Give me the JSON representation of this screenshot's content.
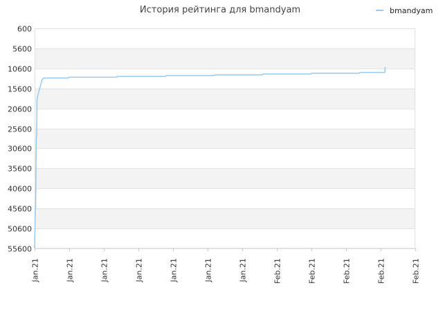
{
  "chart_data": {
    "type": "line",
    "title": "История рейтинга для bmandyam",
    "xlabel": "",
    "ylabel": "",
    "y_reversed": true,
    "ylim": [
      600,
      55600
    ],
    "y_ticks": [
      600,
      5600,
      10600,
      15600,
      20600,
      25600,
      30600,
      35600,
      40600,
      45600,
      50600,
      55600
    ],
    "x_ticks": [
      "Jan.21",
      "Jan.21",
      "Jan.21",
      "Jan.21",
      "Jan.21",
      "Jan.21",
      "Jan.21",
      "Feb.21",
      "Feb.21",
      "Feb.21",
      "Feb.21",
      "Feb.21"
    ],
    "xlim": [
      0,
      11
    ],
    "grid": "horizontal alternating bands",
    "legend_position": "top-right",
    "series": [
      {
        "name": "bmandyam",
        "color": "#99c9ec",
        "points": [
          {
            "x": 0.0,
            "y": 55600
          },
          {
            "x": 0.02,
            "y": 46000
          },
          {
            "x": 0.03,
            "y": 45600
          },
          {
            "x": 0.04,
            "y": 35000
          },
          {
            "x": 0.05,
            "y": 28000
          },
          {
            "x": 0.06,
            "y": 27100
          },
          {
            "x": 0.07,
            "y": 18500
          },
          {
            "x": 0.08,
            "y": 17800
          },
          {
            "x": 0.15,
            "y": 15500
          },
          {
            "x": 0.22,
            "y": 13400
          },
          {
            "x": 0.26,
            "y": 13000
          },
          {
            "x": 0.98,
            "y": 13000
          },
          {
            "x": 1.0,
            "y": 12800
          },
          {
            "x": 2.38,
            "y": 12800
          },
          {
            "x": 2.4,
            "y": 12600
          },
          {
            "x": 3.78,
            "y": 12600
          },
          {
            "x": 3.8,
            "y": 12400
          },
          {
            "x": 5.18,
            "y": 12400
          },
          {
            "x": 5.2,
            "y": 12200
          },
          {
            "x": 6.58,
            "y": 12200
          },
          {
            "x": 6.6,
            "y": 12000
          },
          {
            "x": 7.98,
            "y": 12000
          },
          {
            "x": 8.0,
            "y": 11800
          },
          {
            "x": 9.38,
            "y": 11800
          },
          {
            "x": 9.4,
            "y": 11600
          },
          {
            "x": 10.12,
            "y": 11600
          },
          {
            "x": 10.13,
            "y": 10200
          }
        ]
      }
    ]
  }
}
